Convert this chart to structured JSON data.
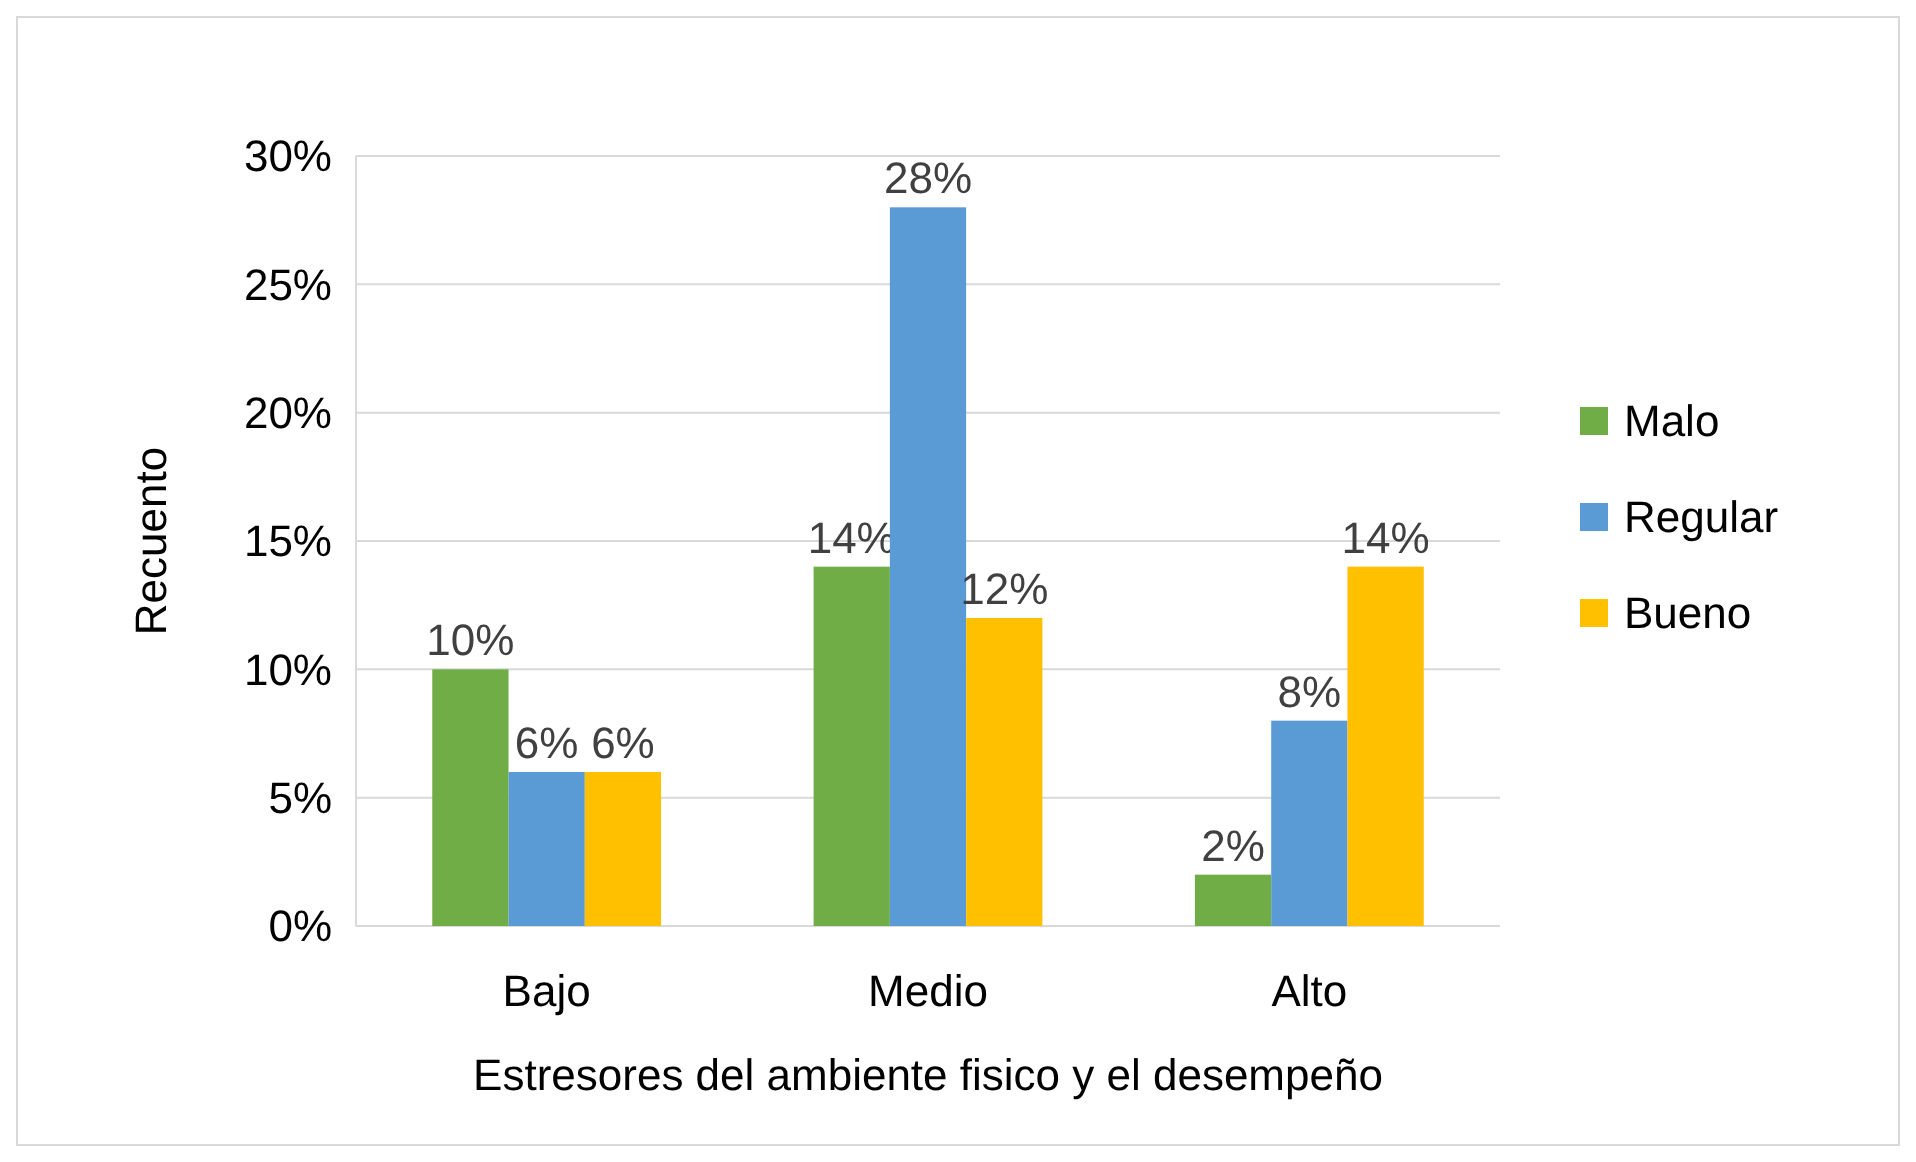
{
  "chart_data": {
    "type": "bar",
    "xlabel": "Estresores del ambiente fisico y el desempeño",
    "ylabel": "Recuento",
    "categories": [
      "Bajo",
      "Medio",
      "Alto"
    ],
    "series": [
      {
        "name": "Malo",
        "color": "#70ad47",
        "values": [
          10,
          14,
          2
        ],
        "value_labels": [
          "10%",
          "14%",
          "2%"
        ]
      },
      {
        "name": "Regular",
        "color": "#5b9bd5",
        "values": [
          6,
          28,
          8
        ],
        "value_labels": [
          "6%",
          "28%",
          "8%"
        ]
      },
      {
        "name": "Bueno",
        "color": "#ffc000",
        "values": [
          6,
          12,
          14
        ],
        "value_labels": [
          "6%",
          "12%",
          "14%"
        ]
      }
    ],
    "ylim": [
      0,
      30
    ],
    "yticks": [
      {
        "value": 0,
        "label": "0%"
      },
      {
        "value": 5,
        "label": "5%"
      },
      {
        "value": 10,
        "label": "10%"
      },
      {
        "value": 15,
        "label": "15%"
      },
      {
        "value": 20,
        "label": "20%"
      },
      {
        "value": 25,
        "label": "25%"
      },
      {
        "value": 30,
        "label": "30%"
      }
    ],
    "grid": "y",
    "legend": "right"
  }
}
